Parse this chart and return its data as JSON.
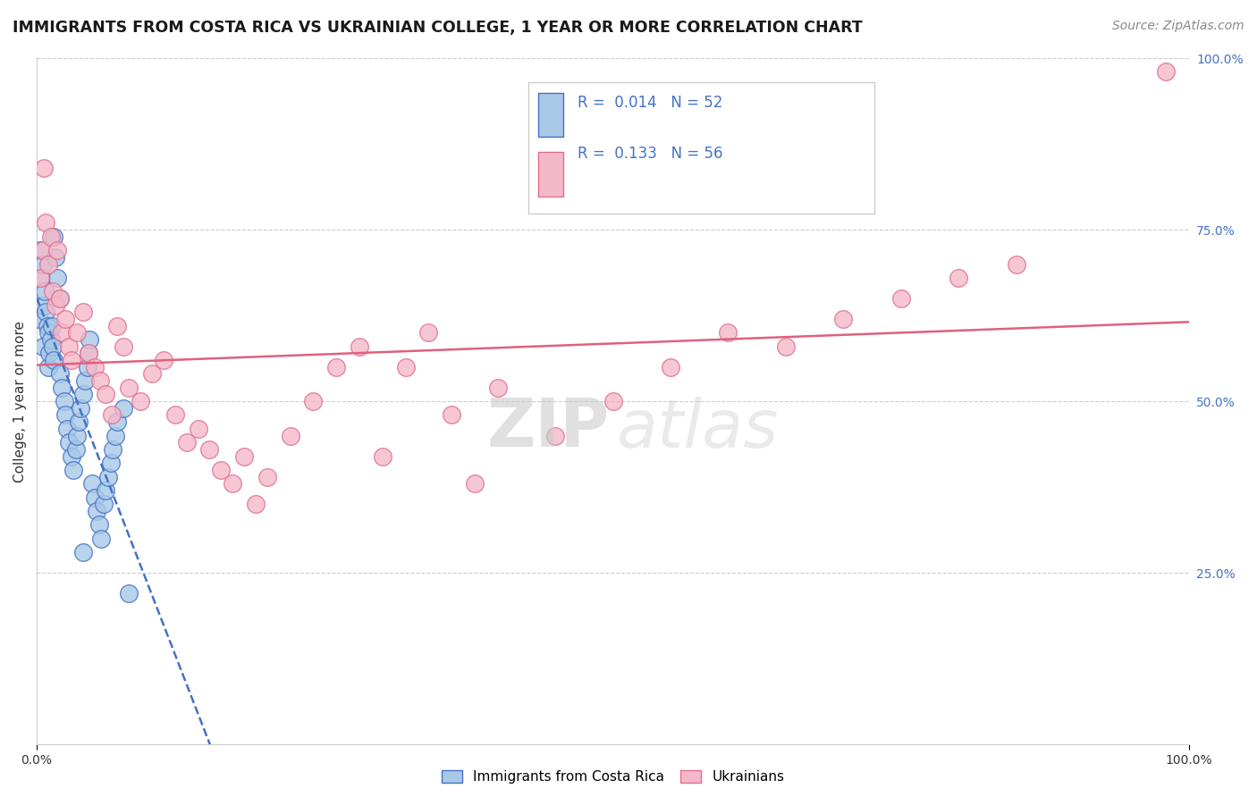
{
  "title": "IMMIGRANTS FROM COSTA RICA VS UKRAINIAN COLLEGE, 1 YEAR OR MORE CORRELATION CHART",
  "source": "Source: ZipAtlas.com",
  "ylabel": "College, 1 year or more",
  "legend_label_1": "Immigrants from Costa Rica",
  "legend_label_2": "Ukrainians",
  "r1": "0.014",
  "n1": "52",
  "r2": "0.133",
  "n2": "56",
  "color_blue_fill": "#a8c8e8",
  "color_blue_edge": "#4472c4",
  "color_pink_fill": "#f4b8c8",
  "color_pink_edge": "#e07090",
  "color_blue_line": "#4472c4",
  "color_pink_line": "#e06080",
  "color_text_blue": "#4472c4",
  "watermark_zip": "ZIP",
  "watermark_atlas": "atlas",
  "blue_x": [
    0.002,
    0.003,
    0.004,
    0.005,
    0.005,
    0.006,
    0.007,
    0.008,
    0.009,
    0.01,
    0.01,
    0.011,
    0.012,
    0.013,
    0.014,
    0.015,
    0.015,
    0.016,
    0.018,
    0.02,
    0.02,
    0.022,
    0.024,
    0.025,
    0.026,
    0.028,
    0.03,
    0.032,
    0.034,
    0.035,
    0.036,
    0.038,
    0.04,
    0.042,
    0.044,
    0.045,
    0.046,
    0.048,
    0.05,
    0.052,
    0.054,
    0.056,
    0.058,
    0.06,
    0.062,
    0.064,
    0.066,
    0.068,
    0.07,
    0.075,
    0.08,
    0.04
  ],
  "blue_y": [
    0.62,
    0.72,
    0.68,
    0.7,
    0.58,
    0.64,
    0.66,
    0.63,
    0.61,
    0.6,
    0.55,
    0.57,
    0.59,
    0.61,
    0.58,
    0.56,
    0.74,
    0.71,
    0.68,
    0.65,
    0.54,
    0.52,
    0.5,
    0.48,
    0.46,
    0.44,
    0.42,
    0.4,
    0.43,
    0.45,
    0.47,
    0.49,
    0.51,
    0.53,
    0.55,
    0.57,
    0.59,
    0.38,
    0.36,
    0.34,
    0.32,
    0.3,
    0.35,
    0.37,
    0.39,
    0.41,
    0.43,
    0.45,
    0.47,
    0.49,
    0.22,
    0.28
  ],
  "pink_x": [
    0.003,
    0.005,
    0.006,
    0.008,
    0.01,
    0.012,
    0.014,
    0.016,
    0.018,
    0.02,
    0.022,
    0.025,
    0.028,
    0.03,
    0.035,
    0.04,
    0.045,
    0.05,
    0.055,
    0.06,
    0.065,
    0.07,
    0.075,
    0.08,
    0.09,
    0.1,
    0.11,
    0.12,
    0.13,
    0.14,
    0.15,
    0.16,
    0.17,
    0.18,
    0.19,
    0.2,
    0.22,
    0.24,
    0.26,
    0.28,
    0.3,
    0.32,
    0.34,
    0.36,
    0.38,
    0.4,
    0.45,
    0.5,
    0.55,
    0.6,
    0.65,
    0.7,
    0.75,
    0.8,
    0.85,
    0.98
  ],
  "pink_y": [
    0.68,
    0.72,
    0.84,
    0.76,
    0.7,
    0.74,
    0.66,
    0.64,
    0.72,
    0.65,
    0.6,
    0.62,
    0.58,
    0.56,
    0.6,
    0.63,
    0.57,
    0.55,
    0.53,
    0.51,
    0.48,
    0.61,
    0.58,
    0.52,
    0.5,
    0.54,
    0.56,
    0.48,
    0.44,
    0.46,
    0.43,
    0.4,
    0.38,
    0.42,
    0.35,
    0.39,
    0.45,
    0.5,
    0.55,
    0.58,
    0.42,
    0.55,
    0.6,
    0.48,
    0.38,
    0.52,
    0.45,
    0.5,
    0.55,
    0.6,
    0.58,
    0.62,
    0.65,
    0.68,
    0.7,
    0.98
  ]
}
